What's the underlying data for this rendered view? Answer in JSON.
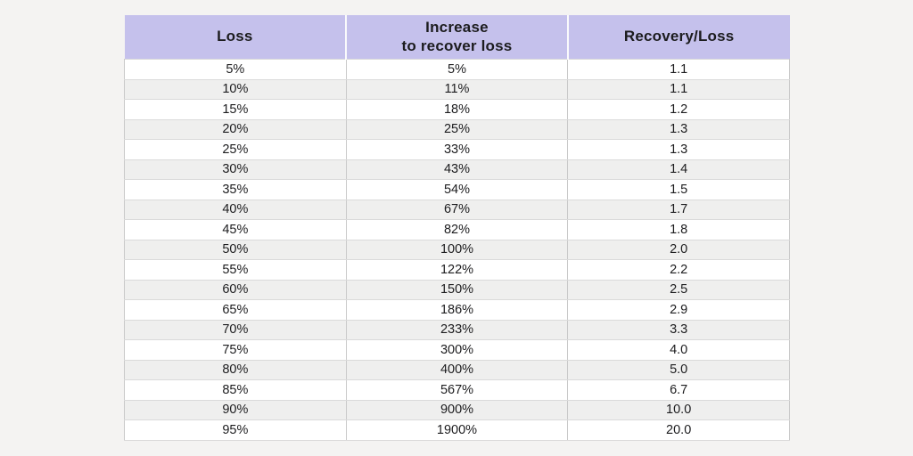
{
  "colors": {
    "page_background": "#f4f3f2",
    "header_background": "#c5c1ec",
    "row_white": "#ffffff",
    "row_stripe": "#efefee",
    "row_border": "#dadada",
    "column_border": "#c9c9c9",
    "text": "#1c1c1e"
  },
  "table": {
    "headers": [
      "Loss",
      "Increase\nto recover loss",
      "Recovery/Loss"
    ],
    "rows": [
      [
        "5%",
        "5%",
        "1.1"
      ],
      [
        "10%",
        "11%",
        "1.1"
      ],
      [
        "15%",
        "18%",
        "1.2"
      ],
      [
        "20%",
        "25%",
        "1.3"
      ],
      [
        "25%",
        "33%",
        "1.3"
      ],
      [
        "30%",
        "43%",
        "1.4"
      ],
      [
        "35%",
        "54%",
        "1.5"
      ],
      [
        "40%",
        "67%",
        "1.7"
      ],
      [
        "45%",
        "82%",
        "1.8"
      ],
      [
        "50%",
        "100%",
        "2.0"
      ],
      [
        "55%",
        "122%",
        "2.2"
      ],
      [
        "60%",
        "150%",
        "2.5"
      ],
      [
        "65%",
        "186%",
        "2.9"
      ],
      [
        "70%",
        "233%",
        "3.3"
      ],
      [
        "75%",
        "300%",
        "4.0"
      ],
      [
        "80%",
        "400%",
        "5.0"
      ],
      [
        "85%",
        "567%",
        "6.7"
      ],
      [
        "90%",
        "900%",
        "10.0"
      ],
      [
        "95%",
        "1900%",
        "20.0"
      ]
    ]
  },
  "chart_data": {
    "type": "table",
    "title": "",
    "columns": [
      "Loss",
      "Increase to recover loss",
      "Recovery/Loss"
    ],
    "loss_percent": [
      5,
      10,
      15,
      20,
      25,
      30,
      35,
      40,
      45,
      50,
      55,
      60,
      65,
      70,
      75,
      80,
      85,
      90,
      95
    ],
    "increase_to_recover_percent": [
      5,
      11,
      18,
      25,
      33,
      43,
      54,
      67,
      82,
      100,
      122,
      150,
      186,
      233,
      300,
      400,
      567,
      900,
      1900
    ],
    "recovery_over_loss": [
      1.1,
      1.1,
      1.2,
      1.3,
      1.3,
      1.4,
      1.5,
      1.7,
      1.8,
      2.0,
      2.2,
      2.5,
      2.9,
      3.3,
      4.0,
      5.0,
      6.7,
      10.0,
      20.0
    ]
  }
}
